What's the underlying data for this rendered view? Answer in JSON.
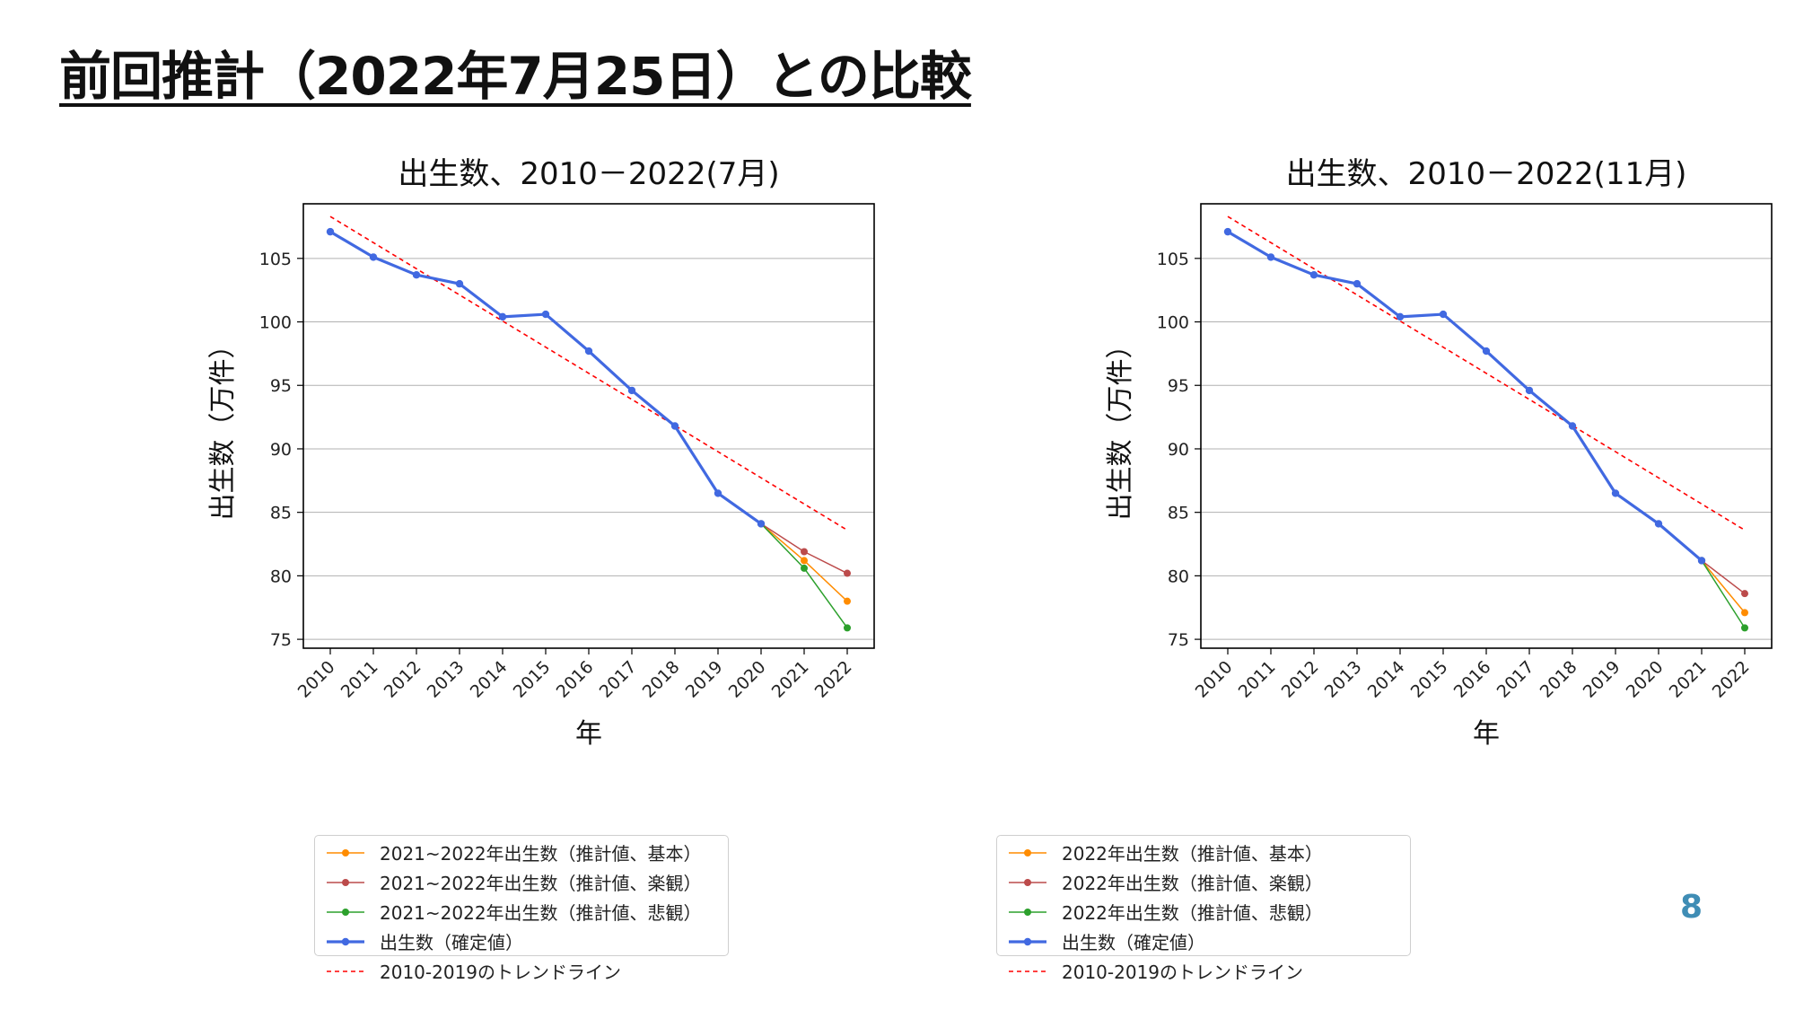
{
  "slide": {
    "title": "前回推計（2022年7月25日）との比較",
    "page_number": "8"
  },
  "colors": {
    "actual": "#4169e1",
    "trend": "#ff0000",
    "base": "#ff8c00",
    "optimistic": "#bc4b4b",
    "pessimistic": "#2ca02c",
    "grid": "#b0b0b0",
    "page_number": "#3f8db5"
  },
  "chart_data": [
    {
      "type": "line",
      "title": "出生数、2010－2022(7月)",
      "xlabel": "年",
      "ylabel": "出生数（万件）",
      "x": [
        2010,
        2011,
        2012,
        2013,
        2014,
        2015,
        2016,
        2017,
        2018,
        2019,
        2020,
        2021,
        2022
      ],
      "ylim": [
        74.3,
        109.3
      ],
      "yticks": [
        75,
        80,
        85,
        90,
        95,
        100,
        105
      ],
      "grid": "horizontal",
      "series": [
        {
          "name": "出生数（確定値）",
          "style": "actual",
          "x": [
            2010,
            2011,
            2012,
            2013,
            2014,
            2015,
            2016,
            2017,
            2018,
            2019,
            2020
          ],
          "values": [
            107.1,
            105.1,
            103.7,
            103.0,
            100.4,
            100.6,
            97.7,
            94.6,
            91.8,
            86.5,
            84.1
          ]
        },
        {
          "name": "2010-2019のトレンドライン",
          "style": "trend",
          "x": [
            2010,
            2022
          ],
          "values": [
            108.3,
            83.6
          ]
        },
        {
          "name": "2021~2022年出生数（推計値、基本）",
          "style": "base",
          "x": [
            2020,
            2021,
            2022
          ],
          "values": [
            84.1,
            81.2,
            78.0
          ]
        },
        {
          "name": "2021~2022年出生数（推計値、楽観）",
          "style": "optimistic",
          "x": [
            2020,
            2021,
            2022
          ],
          "values": [
            84.1,
            81.9,
            80.2
          ]
        },
        {
          "name": "2021~2022年出生数（推計値、悲観）",
          "style": "pessimistic",
          "x": [
            2020,
            2021,
            2022
          ],
          "values": [
            84.1,
            80.6,
            75.9
          ]
        }
      ],
      "legend_order": [
        2,
        3,
        4,
        0,
        1
      ]
    },
    {
      "type": "line",
      "title": "出生数、2010－2022(11月)",
      "xlabel": "年",
      "ylabel": "出生数（万件）",
      "x": [
        2010,
        2011,
        2012,
        2013,
        2014,
        2015,
        2016,
        2017,
        2018,
        2019,
        2020,
        2021,
        2022
      ],
      "ylim": [
        74.3,
        109.3
      ],
      "yticks": [
        75,
        80,
        85,
        90,
        95,
        100,
        105
      ],
      "grid": "horizontal",
      "series": [
        {
          "name": "出生数（確定値）",
          "style": "actual",
          "x": [
            2010,
            2011,
            2012,
            2013,
            2014,
            2015,
            2016,
            2017,
            2018,
            2019,
            2020,
            2021
          ],
          "values": [
            107.1,
            105.1,
            103.7,
            103.0,
            100.4,
            100.6,
            97.7,
            94.6,
            91.8,
            86.5,
            84.1,
            81.2
          ]
        },
        {
          "name": "2010-2019のトレンドライン",
          "style": "trend",
          "x": [
            2010,
            2022
          ],
          "values": [
            108.3,
            83.6
          ]
        },
        {
          "name": "2022年出生数（推計値、基本）",
          "style": "base",
          "x": [
            2021,
            2022
          ],
          "values": [
            81.2,
            77.1
          ]
        },
        {
          "name": "2022年出生数（推計値、楽観）",
          "style": "optimistic",
          "x": [
            2021,
            2022
          ],
          "values": [
            81.2,
            78.6
          ]
        },
        {
          "name": "2022年出生数（推計値、悲観）",
          "style": "pessimistic",
          "x": [
            2021,
            2022
          ],
          "values": [
            81.2,
            75.9
          ]
        }
      ],
      "legend_order": [
        2,
        3,
        4,
        0,
        1
      ]
    }
  ]
}
